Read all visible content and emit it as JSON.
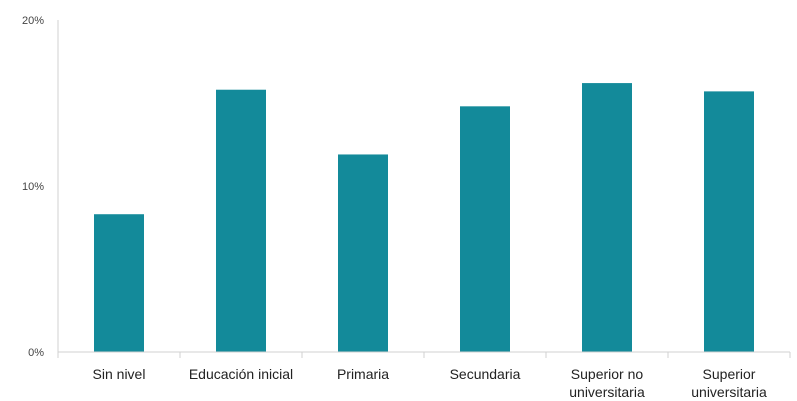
{
  "chart_data": {
    "type": "bar",
    "title": "",
    "xlabel": "",
    "ylabel": "",
    "categories": [
      [
        "Sin nivel"
      ],
      [
        "Educación inicial"
      ],
      [
        "Primaria"
      ],
      [
        "Secundaria"
      ],
      [
        "Superior no",
        "universitaria"
      ],
      [
        "Superior",
        "universitaria"
      ]
    ],
    "values": [
      8.3,
      15.8,
      11.9,
      14.8,
      16.2,
      15.7
    ],
    "ylim": [
      0,
      20
    ],
    "yticks": [
      "0%",
      "10%",
      "20%"
    ],
    "grid": false,
    "bar_color": "#138a9a",
    "axis_color": "#d0d0d0"
  }
}
